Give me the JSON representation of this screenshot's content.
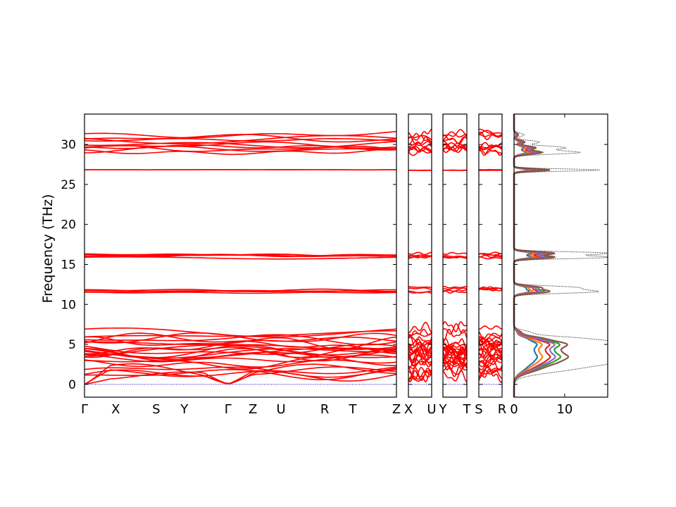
{
  "chart_data": {
    "type": "line",
    "title": "",
    "ylabel": "Frequency (THz)",
    "ylim": [
      -1.6,
      33.8
    ],
    "yticks": [
      0,
      5,
      10,
      15,
      20,
      25,
      30
    ],
    "band_color": "#ff0000",
    "zero_line_color": "#0000cc",
    "panels": [
      {
        "labels": [
          "Γ",
          "X",
          "S",
          "Y",
          "Γ",
          "Z",
          "U",
          "R",
          "T",
          "Z"
        ],
        "x": [
          0,
          0.1,
          0.23,
          0.32,
          0.46,
          0.54,
          0.63,
          0.77,
          0.86,
          1.0
        ]
      },
      {
        "labels": [
          "X",
          "U"
        ],
        "x": [
          0,
          1
        ]
      },
      {
        "labels": [
          "Y",
          "T"
        ],
        "x": [
          0,
          1
        ]
      },
      {
        "labels": [
          "S",
          "R"
        ],
        "x": [
          0,
          1
        ]
      }
    ],
    "dos": {
      "xticks": [
        0,
        10
      ],
      "xlim": [
        0,
        18.5
      ],
      "total_color": "#000000",
      "projection_colors": [
        "#1f77b4",
        "#ff7f0e",
        "#2ca02c",
        "#d62728",
        "#9467bd",
        "#8c564b"
      ],
      "peaks": [
        {
          "freq": 0,
          "width": 0.0,
          "height": 0
        },
        {
          "freq": 2.1,
          "width": 0.9,
          "height": 12
        },
        {
          "freq": 2.9,
          "width": 0.6,
          "height": 13
        },
        {
          "freq": 3.5,
          "width": 0.5,
          "height": 16
        },
        {
          "freq": 4.1,
          "width": 0.5,
          "height": 15
        },
        {
          "freq": 4.7,
          "width": 0.5,
          "height": 14
        },
        {
          "freq": 5.2,
          "width": 0.5,
          "height": 17
        },
        {
          "freq": 5.8,
          "width": 0.4,
          "height": 9
        },
        {
          "freq": 6.5,
          "width": 0.4,
          "height": 3
        },
        {
          "freq": 11.6,
          "width": 0.3,
          "height": 16
        },
        {
          "freq": 12.1,
          "width": 0.3,
          "height": 12
        },
        {
          "freq": 15.9,
          "width": 0.25,
          "height": 19
        },
        {
          "freq": 16.4,
          "width": 0.25,
          "height": 19
        },
        {
          "freq": 26.8,
          "width": 0.2,
          "height": 17
        },
        {
          "freq": 29.0,
          "width": 0.3,
          "height": 13
        },
        {
          "freq": 29.6,
          "width": 0.3,
          "height": 10
        },
        {
          "freq": 30.3,
          "width": 0.3,
          "height": 5
        },
        {
          "freq": 31.2,
          "width": 0.3,
          "height": 2
        }
      ]
    },
    "band_groups": [
      {
        "center": 0.0,
        "spread": 0.0,
        "count": 1,
        "kind": "acoustic"
      },
      {
        "center": 1.8,
        "spread": 0.9,
        "count": 6,
        "kind": "low"
      },
      {
        "center": 3.4,
        "spread": 0.9,
        "count": 8,
        "kind": "low"
      },
      {
        "center": 4.8,
        "spread": 0.9,
        "count": 8,
        "kind": "low"
      },
      {
        "center": 6.5,
        "spread": 0.8,
        "count": 3,
        "kind": "low"
      },
      {
        "center": 11.8,
        "spread": 0.35,
        "count": 4,
        "kind": "flat"
      },
      {
        "center": 16.1,
        "spread": 0.35,
        "count": 5,
        "kind": "flat"
      },
      {
        "center": 26.8,
        "spread": 0.05,
        "count": 2,
        "kind": "flat"
      },
      {
        "center": 29.5,
        "spread": 0.5,
        "count": 6,
        "kind": "mid"
      },
      {
        "center": 30.9,
        "spread": 0.6,
        "count": 4,
        "kind": "mid"
      }
    ]
  }
}
